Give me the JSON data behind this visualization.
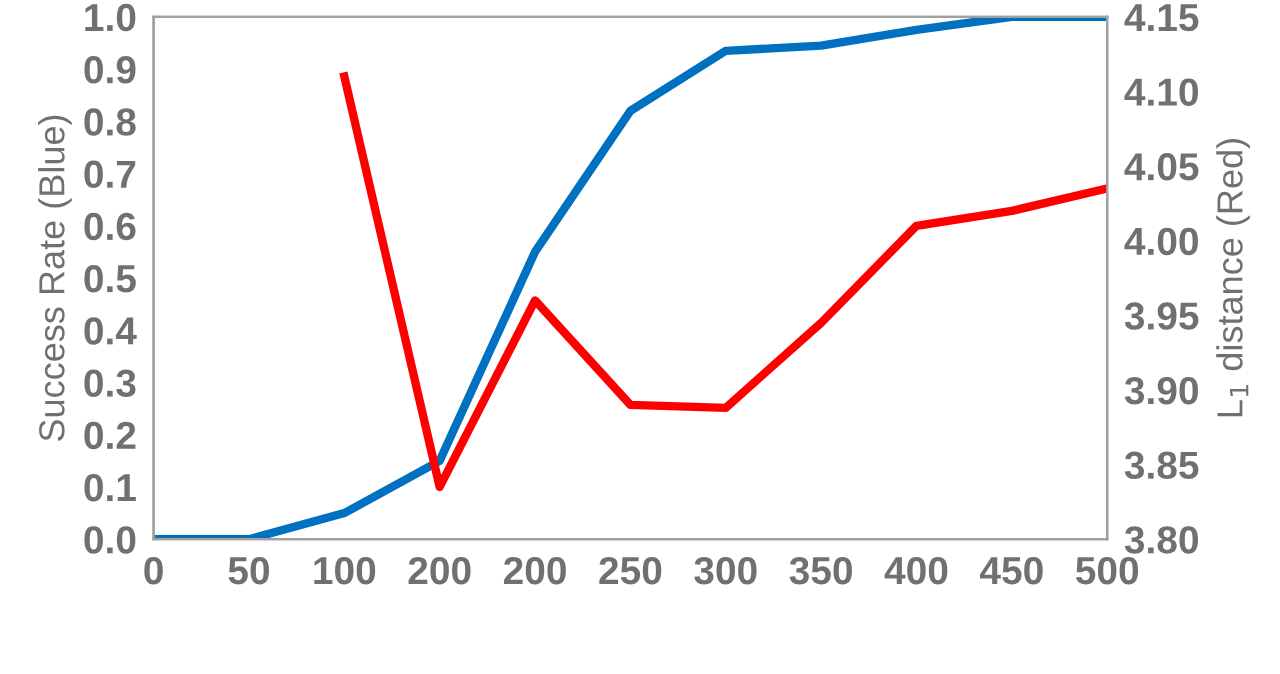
{
  "chart_data": {
    "type": "line",
    "ylabel": "Success Rate (Blue)",
    "y2label": "L$_{1}$ distance (Red)",
    "categories": [
      "0",
      "50",
      "100",
      "200",
      "200",
      "250",
      "300",
      "350",
      "400",
      "450",
      "500"
    ],
    "series": [
      {
        "color": "#0070c0",
        "values": [
          0,
          0,
          0.05,
          0.15,
          0.55,
          0.82,
          0.935,
          0.945,
          0.975,
          1.0,
          1.0
        ]
      },
      {
        "color": "#ff0000",
        "axis": "y2",
        "values": [
          null,
          null,
          4.11,
          3.835,
          3.96,
          3.89,
          3.888,
          3.945,
          4.01,
          4.02,
          4.035
        ]
      }
    ],
    "ylim": [
      0,
      1
    ],
    "yticks": [
      {
        "value": 0,
        "label": "0.0"
      },
      {
        "value": 0.1,
        "label": "0.1"
      },
      {
        "value": 0.2,
        "label": "0.2"
      },
      {
        "value": 0.3,
        "label": "0.3"
      },
      {
        "value": 0.4,
        "label": "0.4"
      },
      {
        "value": 0.5,
        "label": "0.5"
      },
      {
        "value": 0.6,
        "label": "0.6"
      },
      {
        "value": 0.7,
        "label": "0.7"
      },
      {
        "value": 0.8,
        "label": "0.8"
      },
      {
        "value": 0.9,
        "label": "0.9"
      },
      {
        "value": 1,
        "label": "1.0"
      }
    ],
    "y2lim": [
      3.8,
      4.15
    ],
    "y2ticks": [
      {
        "value": 3.8,
        "label": "3.80"
      },
      {
        "value": 3.85,
        "label": "3.85"
      },
      {
        "value": 3.9,
        "label": "3.90"
      },
      {
        "value": 3.95,
        "label": "3.95"
      },
      {
        "value": 4.0,
        "label": "4.00"
      },
      {
        "value": 4.05,
        "label": "4.05"
      },
      {
        "value": 4.1,
        "label": "4.10"
      },
      {
        "value": 4.15,
        "label": "4.15"
      }
    ],
    "grid": false,
    "legend": false,
    "marker": "none",
    "line_style": "solid"
  }
}
